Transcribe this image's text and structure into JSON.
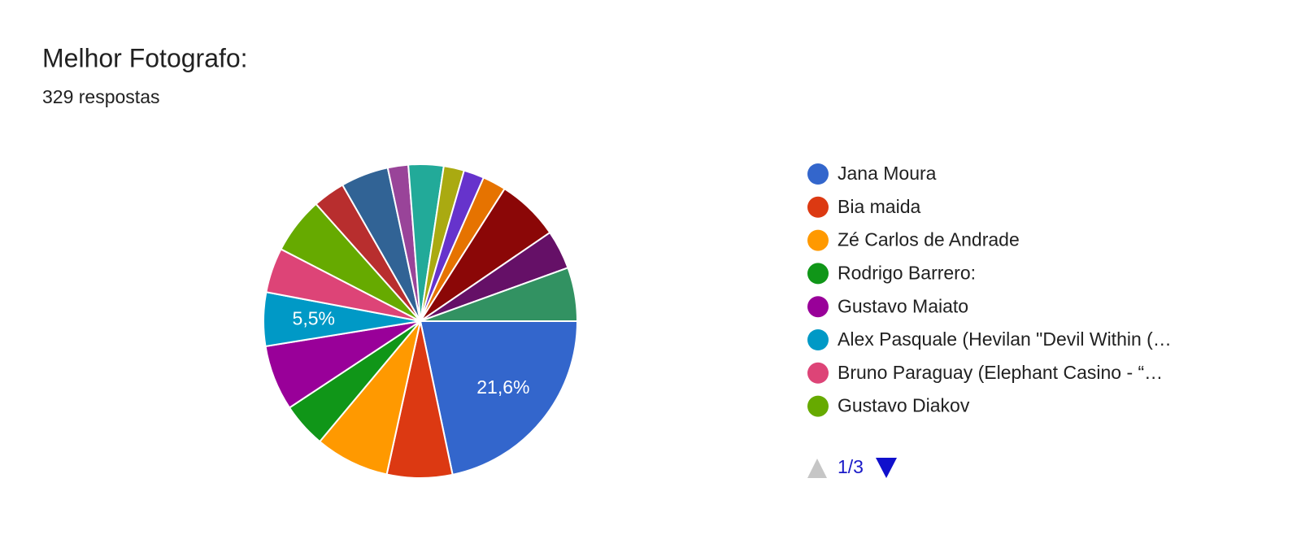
{
  "chart_data": {
    "type": "pie",
    "title": "Melhor Fotografo:",
    "subtitle": "329 respostas",
    "categories": [
      "Jana Moura",
      "Bia maida",
      "Zé Carlos de Andrade",
      "Rodrigo Barrero:",
      "Gustavo Maiato",
      "Alex Pasquale (Hevilan \"Devil Within (…",
      "Bruno Paraguay (Elephant Casino - “…",
      "Gustavo Diakov",
      null,
      null,
      null,
      null,
      null,
      null,
      null,
      null,
      null,
      null
    ],
    "values": [
      21.6,
      6.7,
      7.6,
      4.6,
      6.7,
      5.5,
      4.6,
      5.8,
      3.3,
      4.9,
      2.1,
      3.6,
      2.1,
      2.1,
      2.4,
      6.4,
      4.0,
      5.5
    ],
    "value_labels": [
      "21,6%",
      null,
      null,
      null,
      null,
      "5,5%",
      null,
      null,
      null,
      null,
      null,
      null,
      null,
      null,
      null,
      null,
      null,
      null
    ],
    "colors": [
      "#3366cc",
      "#dc3912",
      "#ff9900",
      "#109618",
      "#990099",
      "#0099c6",
      "#dd4477",
      "#66aa00",
      "#b82e2e",
      "#316395",
      "#994499",
      "#22aa99",
      "#aaaa11",
      "#6633cc",
      "#e67300",
      "#8b0707",
      "#651067",
      "#329262"
    ],
    "legend_page": "1/3"
  }
}
